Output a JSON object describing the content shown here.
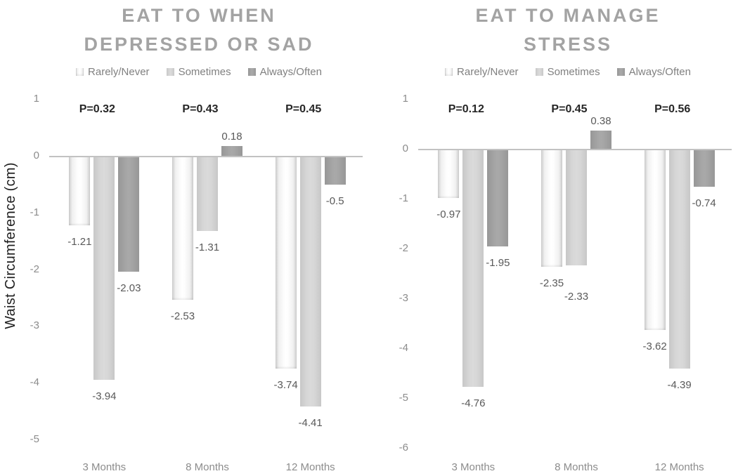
{
  "figure": {
    "y_axis_title": "Waist Circumference (cm)"
  },
  "colors": {
    "series": [
      "#f7f7f7",
      "#d4d4d4",
      "#a0a0a0"
    ],
    "title_text": "#a3a3a3",
    "legend_text": "#808080",
    "tick_text": "#8c8c8c",
    "category_text": "#8c8c8c",
    "value_label_text": "#595959",
    "p_value_text": "#262626",
    "axis_line": "#c2c2c2",
    "y_axis_title_text": "#1f1f1f"
  },
  "chart_data": [
    {
      "type": "bar",
      "title": "EAT TO WHEN DEPRESSED OR SAD",
      "title_lines": [
        "EAT TO WHEN",
        "DEPRESSED OR SAD"
      ],
      "ylabel": "Waist Circumference (cm)",
      "xlabel": "",
      "ylim": [
        -5,
        1
      ],
      "yticks": [
        1,
        0,
        -1,
        -2,
        -3,
        -4,
        -5
      ],
      "grid": false,
      "legend_position": "top",
      "categories": [
        "3 Months",
        "8 Months",
        "12 Months"
      ],
      "series": [
        {
          "name": "Rarely/Never",
          "values": [
            -1.21,
            -2.53,
            -3.74
          ]
        },
        {
          "name": "Sometimes",
          "values": [
            -3.94,
            -1.31,
            -4.41
          ]
        },
        {
          "name": "Always/Often",
          "values": [
            -2.03,
            0.18,
            -0.5
          ]
        }
      ],
      "p_values": [
        "P=0.32",
        "P=0.43",
        "P=0.45"
      ]
    },
    {
      "type": "bar",
      "title": "EAT TO MANAGE STRESS",
      "title_lines": [
        "EAT TO MANAGE",
        "STRESS"
      ],
      "ylabel": "",
      "xlabel": "",
      "ylim": [
        -6,
        1
      ],
      "yticks": [
        1,
        0,
        -1,
        -2,
        -3,
        -4,
        -5,
        -6
      ],
      "grid": false,
      "legend_position": "top",
      "categories": [
        "3 Months",
        "8 Months",
        "12 Months"
      ],
      "series": [
        {
          "name": "Rarely/Never",
          "values": [
            -0.97,
            -2.35,
            -3.62
          ]
        },
        {
          "name": "Sometimes",
          "values": [
            -4.76,
            -2.33,
            -4.39
          ]
        },
        {
          "name": "Always/Often",
          "values": [
            -1.95,
            0.38,
            -0.74
          ]
        }
      ],
      "p_values": [
        "P=0.12",
        "P=0.45",
        "P=0.56"
      ]
    }
  ]
}
